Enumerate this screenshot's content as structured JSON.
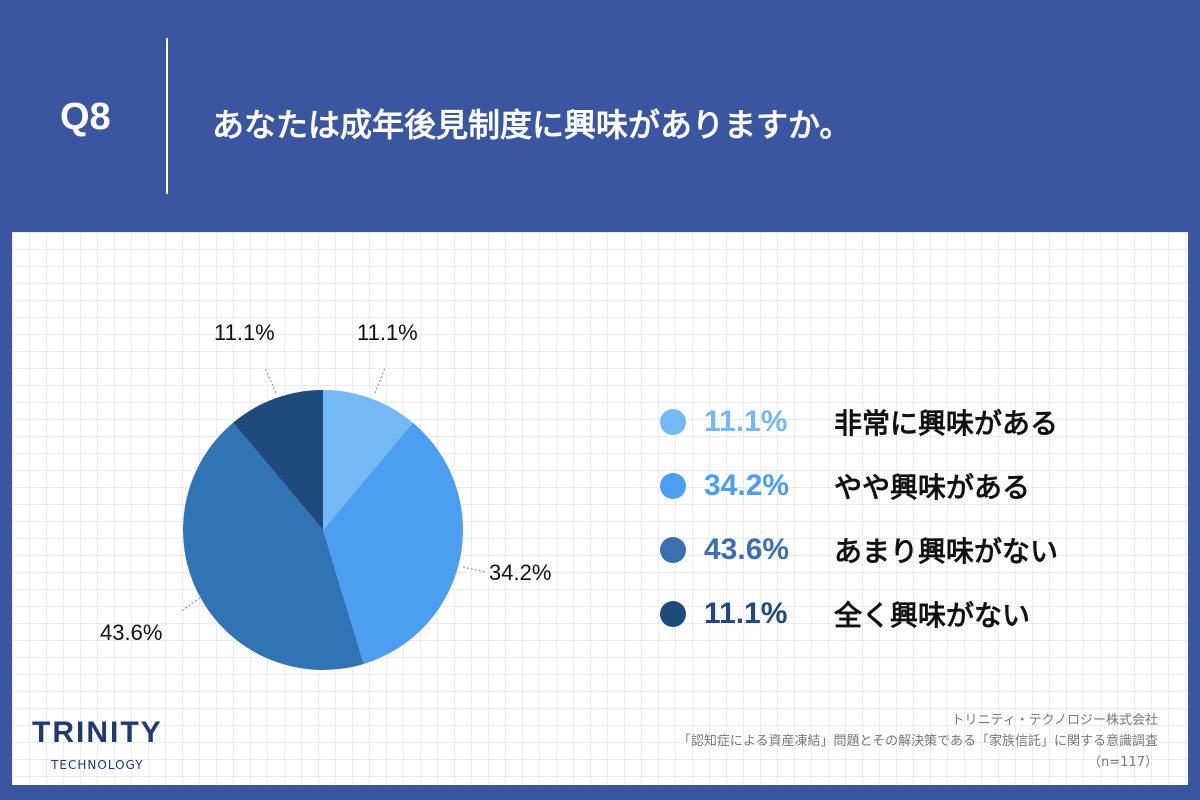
{
  "header": {
    "q": "Q8",
    "title": "あなたは成年後見制度に興味がありますか。"
  },
  "chart_data": {
    "type": "pie",
    "title": "あなたは成年後見制度に興味がありますか。",
    "categories": [
      "非常に興味がある",
      "やや興味がある",
      "あまり興味がない",
      "全く興味がない"
    ],
    "values": [
      11.1,
      34.2,
      43.6,
      11.1
    ],
    "labels": [
      "11.1%",
      "34.2%",
      "43.6%",
      "11.1%"
    ],
    "colors": [
      "#74b9f5",
      "#4b9ef0",
      "#3074b5",
      "#1f4a7c"
    ],
    "legend_position": "right"
  },
  "legend": [
    {
      "value": "11.1%",
      "label": "非常に興味がある",
      "color": "#74b9f5"
    },
    {
      "value": "34.2%",
      "label": "やや興味がある",
      "color": "#4b9ef0"
    },
    {
      "value": "43.6%",
      "label": "あまり興味がない",
      "color": "#3074b5"
    },
    {
      "value": "11.1%",
      "label": "全く興味がない",
      "color": "#1f4a7c"
    }
  ],
  "logo": {
    "name": "TRINITY",
    "sub": "TECHNOLOGY"
  },
  "source": {
    "company": "トリニティ・テクノロジー株式会社",
    "survey": "「認知症による資産凍結」問題とその解決策である「家族信託」に関する意識調査",
    "n": "（n=117）"
  }
}
